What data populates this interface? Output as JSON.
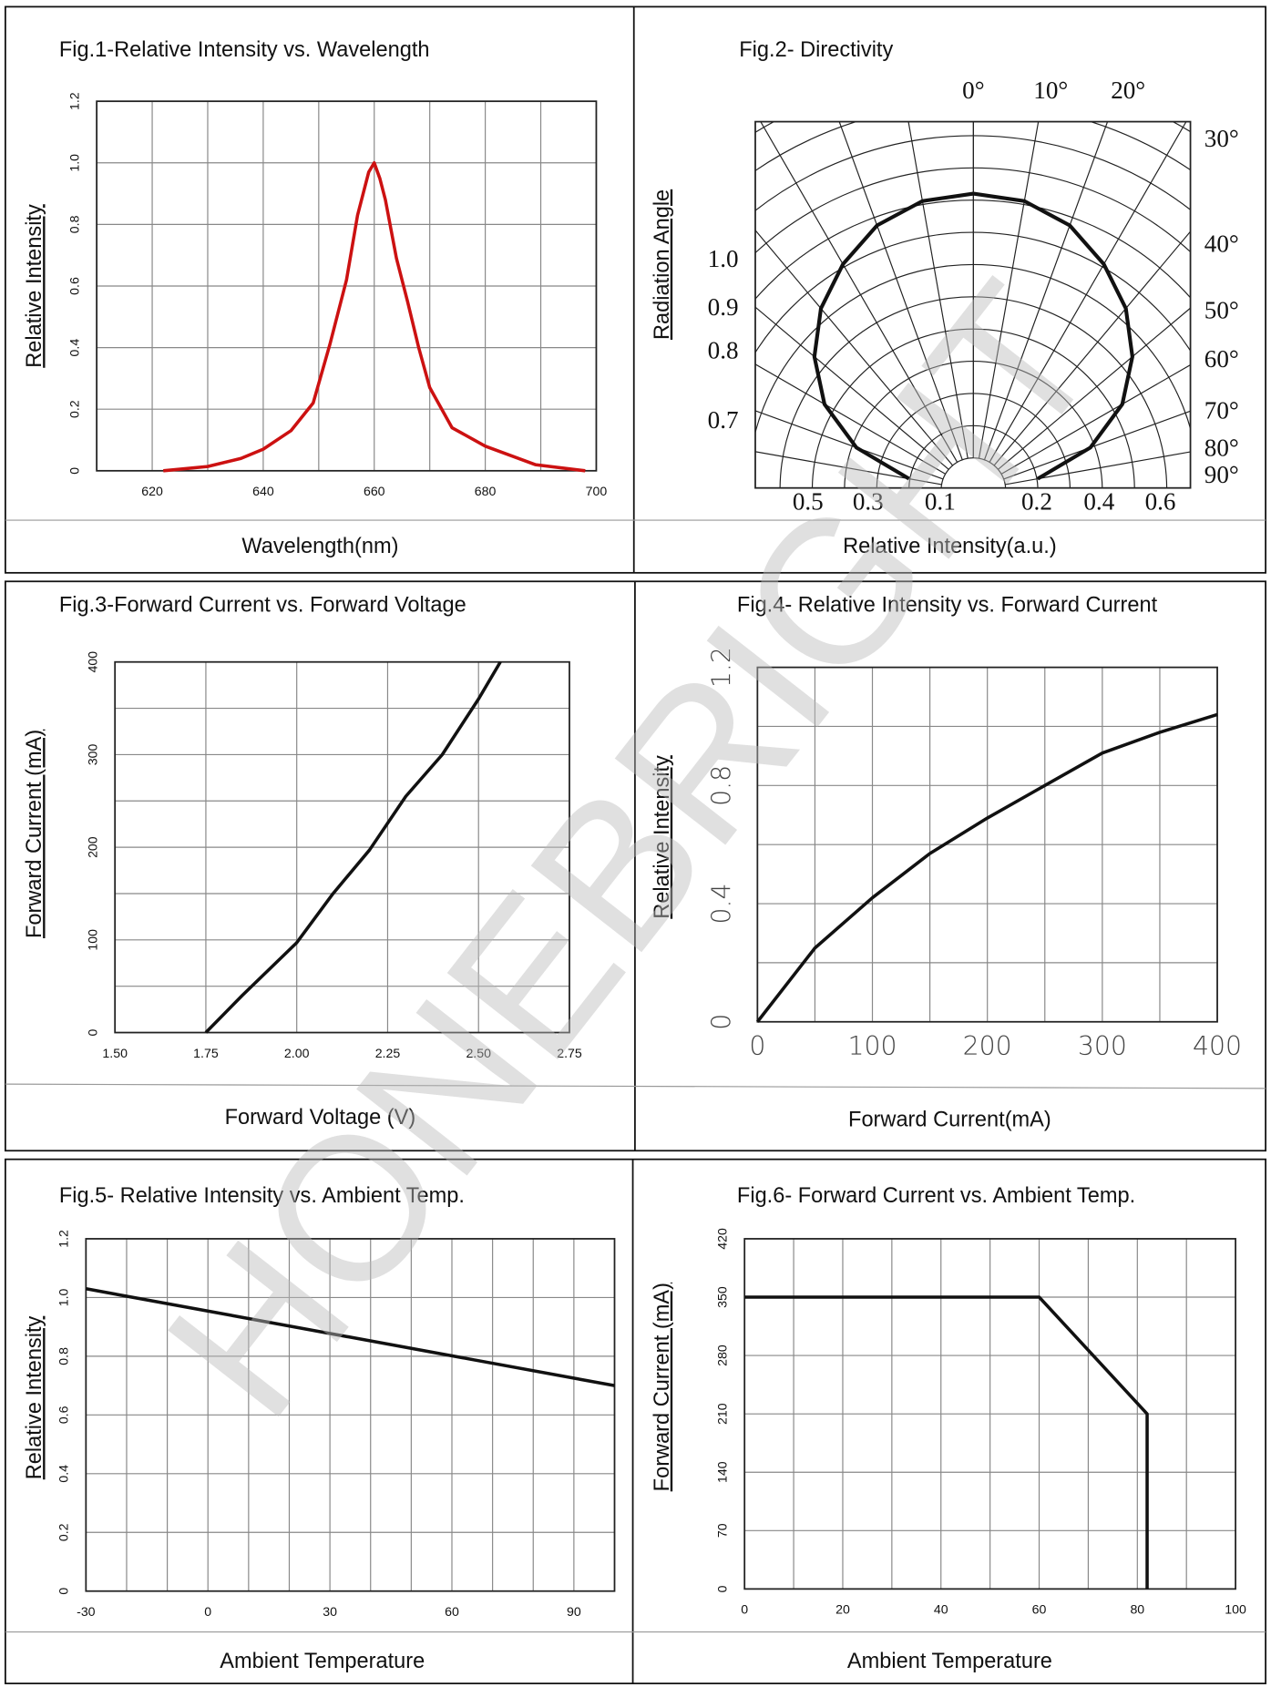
{
  "chart_data": [
    {
      "type": "line",
      "title": "Fig.1-Relative Intensity vs. Wavelength",
      "y_label": "Relative Intensity",
      "x_label": "Wavelength(nm)",
      "x": [
        622,
        630,
        636,
        640,
        645,
        649,
        652,
        655,
        657,
        659,
        660,
        661,
        662,
        664,
        666,
        668,
        670,
        674,
        680,
        689,
        698
      ],
      "values": [
        0,
        0.014,
        0.04,
        0.07,
        0.13,
        0.22,
        0.41,
        0.62,
        0.83,
        0.97,
        1.0,
        0.95,
        0.88,
        0.69,
        0.55,
        0.4,
        0.27,
        0.14,
        0.08,
        0.02,
        0
      ],
      "color": "#cc1111",
      "xlim": [
        610,
        700
      ],
      "xticks": [
        620,
        640,
        660,
        680,
        700
      ],
      "ylim": [
        0,
        1.2
      ],
      "yticks": [
        0,
        0.2,
        0.4,
        0.6,
        0.8,
        {
          "value": 1,
          "label": "1.0"
        },
        1.2
      ],
      "grid": true
    },
    {
      "type": "polar",
      "title": "Fig.2- Directivity",
      "y_label": "Radiation Angle",
      "x_label": "Relative Intensity(a.u.)",
      "angle_ticks": [
        {
          "value": 0,
          "label": "0°"
        },
        {
          "value": 10,
          "label": "10°"
        },
        {
          "value": 20,
          "label": "20°"
        },
        {
          "value": 30,
          "label": "30°"
        },
        {
          "value": 40,
          "label": "40°"
        },
        {
          "value": 50,
          "label": "50°"
        },
        {
          "value": 60,
          "label": "60°"
        },
        {
          "value": 70,
          "label": "70°"
        },
        {
          "value": 80,
          "label": "80°"
        },
        {
          "value": 90,
          "label": "90°"
        }
      ],
      "scale_labels": [
        {
          "value": 1,
          "label": "1.0"
        },
        0.9,
        0.8,
        0.7
      ],
      "intensity_labels": [
        0.5,
        0.3,
        0.1,
        0.2,
        0.4,
        0.6
      ],
      "angles": [
        0,
        10,
        20,
        30,
        40,
        50,
        60,
        70,
        80
      ],
      "values": [
        1.0,
        0.99,
        0.95,
        0.88,
        0.8,
        0.7,
        0.58,
        0.42,
        0.22
      ],
      "color": "#111111"
    },
    {
      "type": "line",
      "title": "Fig.3-Forward Current vs. Forward Voltage",
      "y_label": "Forward Current (mA)",
      "x_label": "Forward Voltage (V)",
      "x": [
        1.75,
        1.85,
        2.0,
        2.1,
        2.2,
        2.3,
        2.4,
        2.5,
        2.56
      ],
      "values": [
        0,
        40,
        97,
        150,
        197,
        255,
        300,
        360,
        400
      ],
      "color": "#111111",
      "xlim": [
        1.5,
        2.75
      ],
      "xticks": [
        {
          "value": 1.5,
          "label": "1.50"
        },
        {
          "value": 1.75,
          "label": "1.75"
        },
        {
          "value": 2,
          "label": "2.00"
        },
        {
          "value": 2.25,
          "label": "2.25"
        },
        {
          "value": 2.5,
          "label": "2.50"
        },
        {
          "value": 2.75,
          "label": "2.75"
        }
      ],
      "ylim": [
        0,
        400
      ],
      "yticks": [
        0,
        100,
        200,
        300,
        400
      ],
      "grid": true
    },
    {
      "type": "line",
      "title": "Fig.4- Relative Intensity vs. Forward Current",
      "y_label": "Relative Intensity",
      "x_label": "Forward Current(mA)",
      "x": [
        0,
        50,
        100,
        150,
        200,
        250,
        300,
        350,
        400
      ],
      "values": [
        0,
        0.25,
        0.42,
        0.57,
        0.69,
        0.8,
        0.91,
        0.98,
        1.04
      ],
      "color": "#111111",
      "xlim": [
        0,
        400
      ],
      "xticks": [
        0,
        100,
        200,
        300,
        400
      ],
      "ylim": [
        0,
        1.2
      ],
      "yticks": [
        0,
        0.4,
        0.8,
        1.2
      ],
      "grid": true
    },
    {
      "type": "line",
      "title": "Fig.5- Relative Intensity vs. Ambient Temp.",
      "y_label": "Relative Intensity",
      "x_label": "Ambient Temperature",
      "x": [
        -30,
        100
      ],
      "values": [
        1.03,
        0.7
      ],
      "color": "#111111",
      "xlim": [
        -30,
        100
      ],
      "xticks": [
        -30,
        0,
        30,
        60,
        90
      ],
      "ylim": [
        0,
        1.2
      ],
      "yticks": [
        0,
        0.2,
        0.4,
        0.6,
        0.8,
        {
          "value": 1,
          "label": "1.0"
        },
        1.2
      ],
      "grid": true
    },
    {
      "type": "line",
      "title": "Fig.6- Forward Current vs. Ambient Temp.",
      "y_label": "Forward Current (mA)",
      "x_label": "Ambient Temperature",
      "x": [
        0,
        60,
        82,
        82
      ],
      "values": [
        350,
        350,
        210,
        0
      ],
      "color": "#111111",
      "xlim": [
        0,
        100
      ],
      "xticks": [
        0,
        20,
        40,
        60,
        80,
        100
      ],
      "ylim": [
        0,
        420
      ],
      "yticks": [
        0,
        70,
        140,
        210,
        280,
        350,
        420
      ],
      "grid": true
    }
  ],
  "watermark": "HONEBRIGHT"
}
